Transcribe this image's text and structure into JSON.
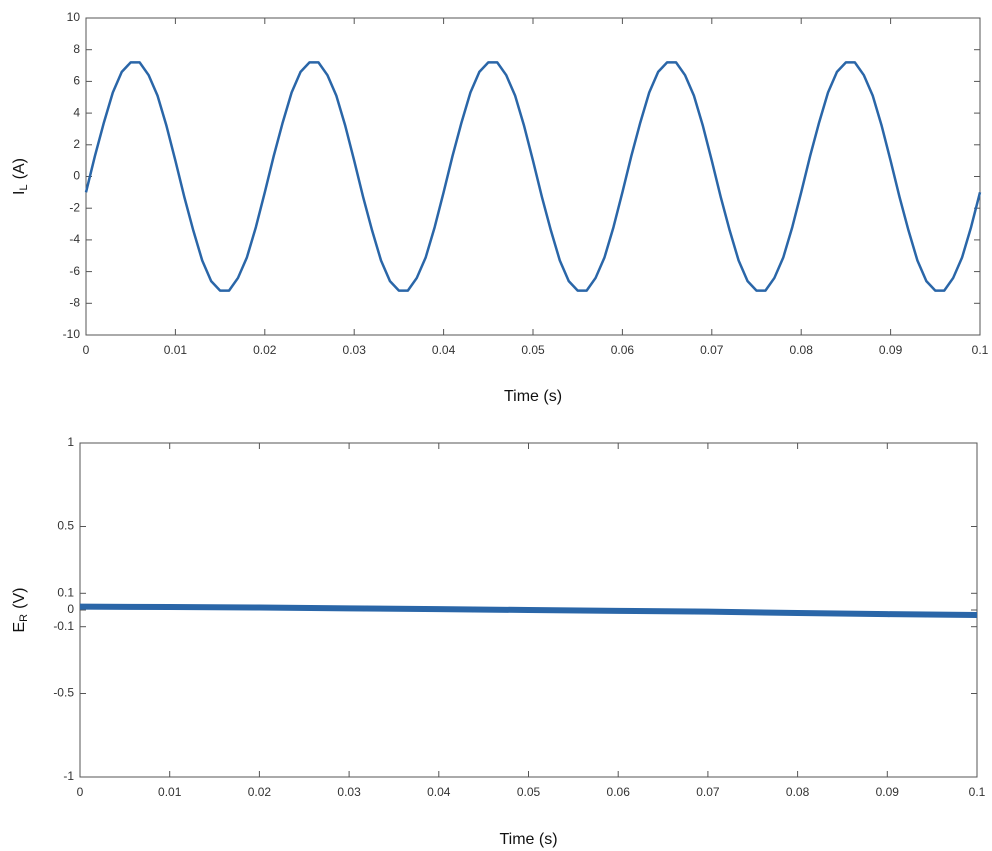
{
  "chart_data": [
    {
      "type": "line",
      "ylabel": [
        "I",
        "L",
        "(A)"
      ],
      "xlabel": "Time (s)",
      "x": [
        0,
        0.001,
        0.002,
        0.003,
        0.004,
        0.005,
        0.006,
        0.007,
        0.008,
        0.009,
        0.01,
        0.011,
        0.012,
        0.013,
        0.014,
        0.015,
        0.016,
        0.017,
        0.018,
        0.019,
        0.02,
        0.021,
        0.022,
        0.023,
        0.024,
        0.025,
        0.026,
        0.027,
        0.028,
        0.029,
        0.03,
        0.031,
        0.032,
        0.033,
        0.034,
        0.035,
        0.036,
        0.037,
        0.038,
        0.039,
        0.04,
        0.041,
        0.042,
        0.043,
        0.044,
        0.045,
        0.046,
        0.047,
        0.048,
        0.049,
        0.05,
        0.051,
        0.052,
        0.053,
        0.054,
        0.055,
        0.056,
        0.057,
        0.058,
        0.059,
        0.06,
        0.061,
        0.062,
        0.063,
        0.064,
        0.065,
        0.066,
        0.067,
        0.068,
        0.069,
        0.07,
        0.071,
        0.072,
        0.073,
        0.074,
        0.075,
        0.076,
        0.077,
        0.078,
        0.079,
        0.08,
        0.081,
        0.082,
        0.083,
        0.084,
        0.085,
        0.086,
        0.087,
        0.088,
        0.089,
        0.09,
        0.091,
        0.092,
        0.093,
        0.094,
        0.095,
        0.096,
        0.097,
        0.098,
        0.099,
        0.1
      ],
      "series": [
        {
          "color": "#2a66a8",
          "values": [
            -1.0,
            1.3,
            3.4,
            5.3,
            6.6,
            7.2,
            7.2,
            6.4,
            5.1,
            3.2,
            1.0,
            -1.3,
            -3.4,
            -5.3,
            -6.6,
            -7.2,
            -7.2,
            -6.4,
            -5.1,
            -3.2,
            -1.0,
            1.3,
            3.4,
            5.3,
            6.6,
            7.2,
            7.2,
            6.4,
            5.1,
            3.2,
            1.0,
            -1.3,
            -3.4,
            -5.3,
            -6.6,
            -7.2,
            -7.2,
            -6.4,
            -5.1,
            -3.2,
            -1.0,
            1.3,
            3.4,
            5.3,
            6.6,
            7.2,
            7.2,
            6.4,
            5.1,
            3.2,
            1.0,
            -1.3,
            -3.4,
            -5.3,
            -6.6,
            -7.2,
            -7.2,
            -6.4,
            -5.1,
            -3.2,
            -1.0,
            1.3,
            3.4,
            5.3,
            6.6,
            7.2,
            7.2,
            6.4,
            5.1,
            3.2,
            1.0,
            -1.3,
            -3.4,
            -5.3,
            -6.6,
            -7.2,
            -7.2,
            -6.4,
            -5.1,
            -3.2,
            -1.0,
            1.3,
            3.4,
            5.3,
            6.6,
            7.2,
            7.2,
            6.4,
            5.1,
            3.2,
            1.0,
            -1.3,
            -3.4,
            -5.3,
            -6.6,
            -7.2,
            -7.2,
            -6.4,
            -5.1,
            -3.2,
            -1.0
          ]
        }
      ],
      "xlim": [
        0,
        0.1
      ],
      "xticks": [
        0,
        0.01,
        0.02,
        0.03,
        0.04,
        0.05,
        0.06,
        0.07,
        0.08,
        0.09,
        0.1
      ],
      "ylim": [
        -10,
        10
      ],
      "yticks": [
        -10,
        -8,
        -6,
        -4,
        -2,
        0,
        2,
        4,
        6,
        8,
        10
      ]
    },
    {
      "type": "line",
      "ylabel": [
        "E",
        "R",
        "(V)"
      ],
      "xlabel": "Time (s)",
      "x": [
        0,
        0.01,
        0.02,
        0.03,
        0.04,
        0.05,
        0.06,
        0.07,
        0.08,
        0.09,
        0.1
      ],
      "series": [
        {
          "color": "#2a66a8",
          "values": [
            0.02,
            0.018,
            0.015,
            0.01,
            0.005,
            0,
            -0.005,
            -0.01,
            -0.018,
            -0.025,
            -0.03
          ]
        }
      ],
      "xlim": [
        0,
        0.1
      ],
      "xticks": [
        0,
        0.01,
        0.02,
        0.03,
        0.04,
        0.05,
        0.06,
        0.07,
        0.08,
        0.09,
        0.1
      ],
      "ylim": [
        -1,
        1
      ],
      "yticks": [
        -1,
        -0.5,
        -0.1,
        0,
        0.1,
        0.5,
        1
      ]
    }
  ]
}
